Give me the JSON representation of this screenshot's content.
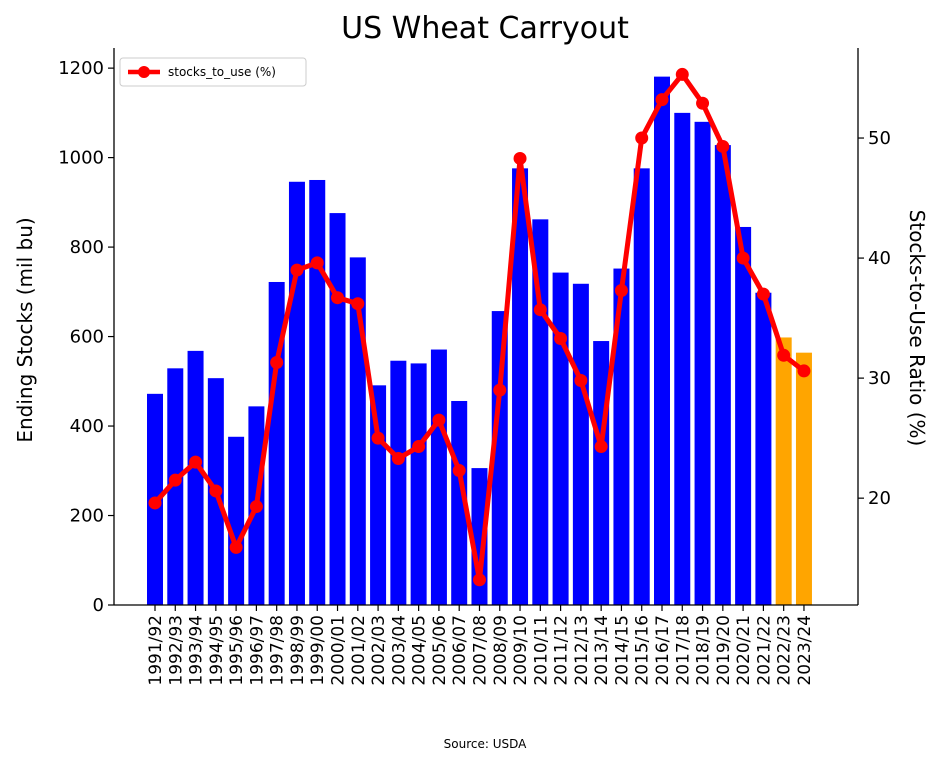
{
  "chart_data": {
    "type": "bar",
    "title": "US Wheat Carryout",
    "ylabel": "Ending Stocks (mil bu)",
    "y2label": "Stocks-to-Use Ratio (%)",
    "source": "Source: USDA",
    "ylim": [
      0,
      1245
    ],
    "y2lim": [
      11.1,
      57.5
    ],
    "yticks": [
      0,
      200,
      400,
      600,
      800,
      1000,
      1200
    ],
    "y2ticks": [
      20,
      30,
      40,
      50
    ],
    "legend_position": "upper-left",
    "categories": [
      "1991/92",
      "1992/93",
      "1993/94",
      "1994/95",
      "1995/96",
      "1996/97",
      "1997/98",
      "1998/99",
      "1999/00",
      "2000/01",
      "2001/02",
      "2002/03",
      "2003/04",
      "2004/05",
      "2005/06",
      "2006/07",
      "2007/08",
      "2008/09",
      "2009/10",
      "2010/11",
      "2011/12",
      "2012/13",
      "2013/14",
      "2014/15",
      "2015/16",
      "2016/17",
      "2017/18",
      "2018/19",
      "2019/20",
      "2020/21",
      "2021/22",
      "2022/23",
      "2023/24"
    ],
    "bars": {
      "name": "Ending Stocks",
      "values": [
        472,
        529,
        568,
        507,
        376,
        444,
        722,
        946,
        950,
        876,
        777,
        491,
        546,
        540,
        571,
        456,
        306,
        657,
        976,
        862,
        743,
        718,
        590,
        752,
        976,
        1181,
        1100,
        1080,
        1028,
        845,
        698,
        598,
        564
      ],
      "colors": [
        "#0000ff",
        "#0000ff",
        "#0000ff",
        "#0000ff",
        "#0000ff",
        "#0000ff",
        "#0000ff",
        "#0000ff",
        "#0000ff",
        "#0000ff",
        "#0000ff",
        "#0000ff",
        "#0000ff",
        "#0000ff",
        "#0000ff",
        "#0000ff",
        "#0000ff",
        "#0000ff",
        "#0000ff",
        "#0000ff",
        "#0000ff",
        "#0000ff",
        "#0000ff",
        "#0000ff",
        "#0000ff",
        "#0000ff",
        "#0000ff",
        "#0000ff",
        "#0000ff",
        "#0000ff",
        "#0000ff",
        "#ffa500",
        "#ffa500"
      ]
    },
    "line": {
      "name": "stocks_to_use (%)",
      "color": "#ff0000",
      "values": [
        19.6,
        21.5,
        23.0,
        20.6,
        15.9,
        19.3,
        31.3,
        39.0,
        39.6,
        36.7,
        36.2,
        25.0,
        23.3,
        24.3,
        26.5,
        22.3,
        13.2,
        29.0,
        48.3,
        35.7,
        33.3,
        29.8,
        24.3,
        37.3,
        50.0,
        53.2,
        55.3,
        52.9,
        49.3,
        40.0,
        37.0,
        31.9,
        30.6
      ]
    }
  }
}
